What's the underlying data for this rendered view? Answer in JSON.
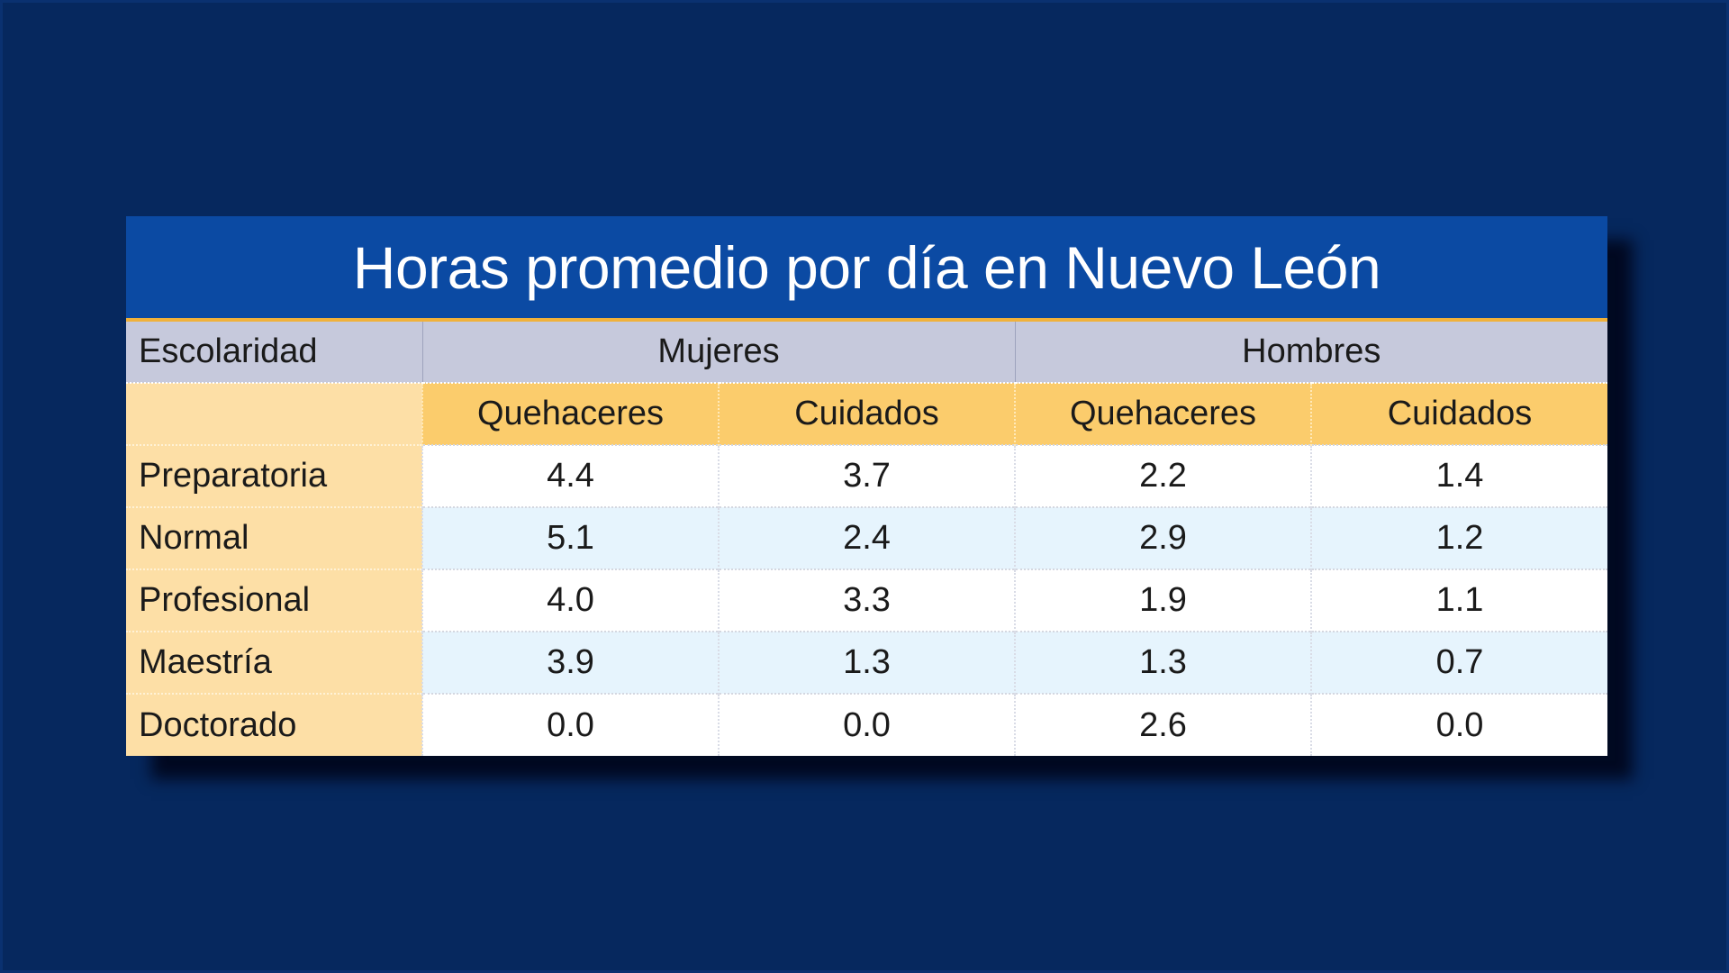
{
  "colors": {
    "background": "#06285e",
    "title_bar": "#0b4aa3",
    "title_underline": "#f0b13b",
    "group_header": "#c6c9dc",
    "sub_header": "#fbcc6c",
    "row_label": "#fddfa6",
    "row_alt": "#e6f4fd"
  },
  "chart_data": {
    "type": "table",
    "title": "Horas promedio por día en Nuevo León",
    "row_header_label": "Escolaridad",
    "groups": [
      "Mujeres",
      "Hombres"
    ],
    "sub_columns": [
      "Quehaceres",
      "Cuidados",
      "Quehaceres",
      "Cuidados"
    ],
    "rows": [
      {
        "label": "Preparatoria",
        "values": [
          "4.4",
          "3.7",
          "2.2",
          "1.4"
        ]
      },
      {
        "label": "Normal",
        "values": [
          "5.1",
          "2.4",
          "2.9",
          "1.2"
        ]
      },
      {
        "label": "Profesional",
        "values": [
          "4.0",
          "3.3",
          "1.9",
          "1.1"
        ]
      },
      {
        "label": "Maestría",
        "values": [
          "3.9",
          "1.3",
          "1.3",
          "0.7"
        ]
      },
      {
        "label": "Doctorado",
        "values": [
          "0.0",
          "0.0",
          "2.6",
          "0.0"
        ]
      }
    ]
  }
}
